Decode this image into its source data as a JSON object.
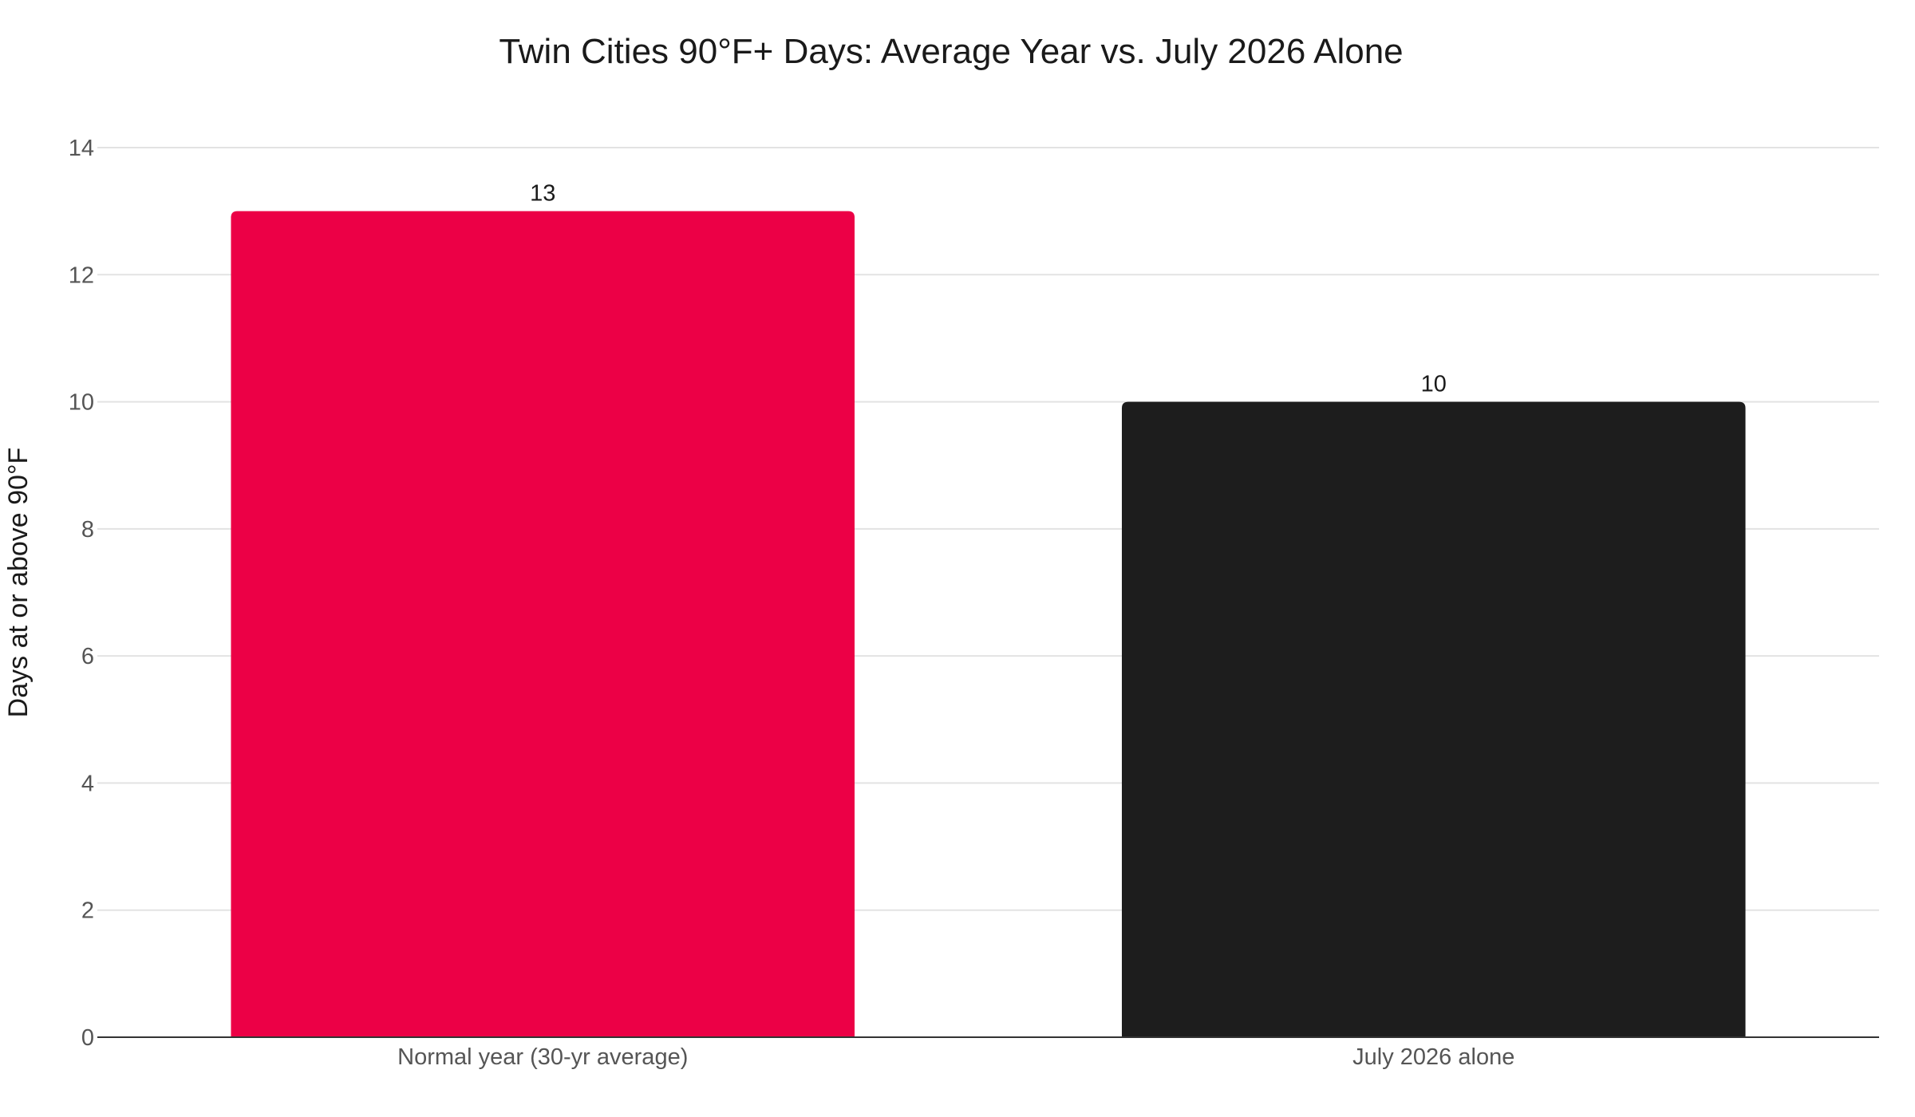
{
  "chart_data": {
    "type": "bar",
    "title": "Twin Cities 90°F+ Days: Average Year vs. July 2026 Alone",
    "xlabel": "",
    "ylabel": "Days at or above 90°F",
    "categories": [
      "Normal year (30-yr average)",
      "July 2026 alone"
    ],
    "values": [
      13,
      10
    ],
    "data_labels": [
      "13",
      "10"
    ],
    "colors": [
      "#ec0046",
      "#1d1d1d"
    ],
    "ylim": [
      0,
      14
    ],
    "yticks": [
      0,
      2,
      4,
      6,
      8,
      10,
      12,
      14
    ],
    "grid": true,
    "legend": "none"
  }
}
